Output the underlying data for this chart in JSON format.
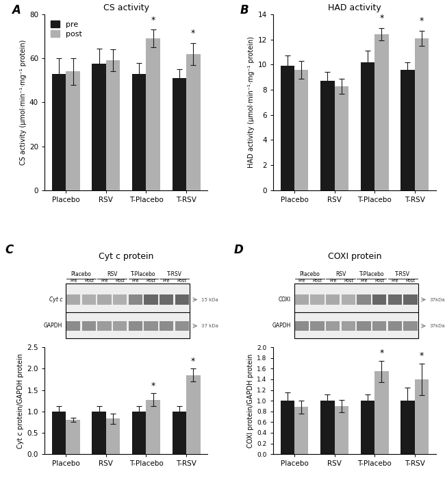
{
  "panel_A": {
    "title": "CS activity",
    "label": "A",
    "ylabel": "CS activity (μmol·min⁻¹·mg⁻¹ protein)",
    "categories": [
      "Placebo",
      "RSV",
      "T-Placebo",
      "T-RSV"
    ],
    "pre_values": [
      53,
      57.5,
      53,
      51
    ],
    "post_values": [
      54,
      59,
      69,
      62
    ],
    "pre_errors": [
      7,
      7,
      5,
      4
    ],
    "post_errors": [
      6,
      5,
      4,
      5
    ],
    "ylim": [
      0,
      80
    ],
    "yticks": [
      0,
      20,
      40,
      60,
      80
    ],
    "sig_post": [
      false,
      false,
      true,
      true
    ]
  },
  "panel_B": {
    "title": "HAD activity",
    "label": "B",
    "ylabel": "HAD activity (μmol·min⁻¹·mg⁻¹ protein)",
    "categories": [
      "Placebo",
      "RSV",
      "T-Placebo",
      "T-RSV"
    ],
    "pre_values": [
      9.9,
      8.7,
      10.2,
      9.6
    ],
    "post_values": [
      9.6,
      8.3,
      12.4,
      12.1
    ],
    "pre_errors": [
      0.8,
      0.7,
      0.9,
      0.6
    ],
    "post_errors": [
      0.7,
      0.6,
      0.5,
      0.6
    ],
    "ylim": [
      0,
      14
    ],
    "yticks": [
      0,
      2,
      4,
      6,
      8,
      10,
      12,
      14
    ],
    "sig_post": [
      false,
      false,
      true,
      true
    ]
  },
  "panel_C": {
    "title": "Cyt c protein",
    "label": "C",
    "ylabel": "Cyt c protein/GAPDH protein",
    "categories": [
      "Placebo",
      "RSV",
      "T-Placebo",
      "T-RSV"
    ],
    "pre_values": [
      1.0,
      1.0,
      1.0,
      1.0
    ],
    "post_values": [
      0.8,
      0.83,
      1.27,
      1.85
    ],
    "pre_errors": [
      0.12,
      0.12,
      0.12,
      0.12
    ],
    "post_errors": [
      0.05,
      0.12,
      0.15,
      0.15
    ],
    "ylim": [
      0.0,
      2.5
    ],
    "yticks": [
      0.0,
      0.5,
      1.0,
      1.5,
      2.0,
      2.5
    ],
    "sig_post": [
      false,
      false,
      true,
      true
    ],
    "blot_labels_top": [
      "Placebo",
      "RSV",
      "T-Placebo",
      "T-RSV"
    ],
    "blot_labels_mid": [
      "Pre",
      "Post",
      "Pre",
      "Post",
      "Pre",
      "Post",
      "Pre",
      "Post"
    ],
    "blot_row1_label": "Cyt c",
    "blot_row1_kda": "15 kDa",
    "blot_row2_label": "GAPDH",
    "blot_row2_kda": "37 kDa",
    "blot_row1_italic": true
  },
  "panel_D": {
    "title": "COXI protein",
    "label": "D",
    "ylabel": "COXI protein/GAPDH protein",
    "categories": [
      "Placebo",
      "RSV",
      "T-Placebo",
      "T-RSV"
    ],
    "pre_values": [
      1.0,
      1.0,
      1.0,
      1.0
    ],
    "post_values": [
      0.88,
      0.9,
      1.55,
      1.4
    ],
    "pre_errors": [
      0.15,
      0.12,
      0.12,
      0.25
    ],
    "post_errors": [
      0.12,
      0.12,
      0.2,
      0.3
    ],
    "ylim": [
      0.0,
      2.0
    ],
    "yticks": [
      0.0,
      0.2,
      0.4,
      0.6,
      0.8,
      1.0,
      1.2,
      1.4,
      1.6,
      1.8,
      2.0
    ],
    "sig_post": [
      false,
      false,
      true,
      true
    ],
    "blot_labels_top": [
      "Placebo",
      "RSV",
      "T-Placebo",
      "T-RSV"
    ],
    "blot_labels_mid": [
      "Pre",
      "Post",
      "Pre",
      "Post",
      "Pre",
      "Post",
      "Pre",
      "Post"
    ],
    "blot_row1_label": "COXI",
    "blot_row1_kda": "37kDa",
    "blot_row2_label": "GAPDH",
    "blot_row2_kda": "37kDa",
    "blot_row1_italic": false
  },
  "bar_color_pre": "#1a1a1a",
  "bar_color_post": "#b0b0b0",
  "legend_labels": [
    "pre",
    "post"
  ],
  "bar_width": 0.35,
  "ecolor": "#1a1a1a",
  "capsize": 3
}
